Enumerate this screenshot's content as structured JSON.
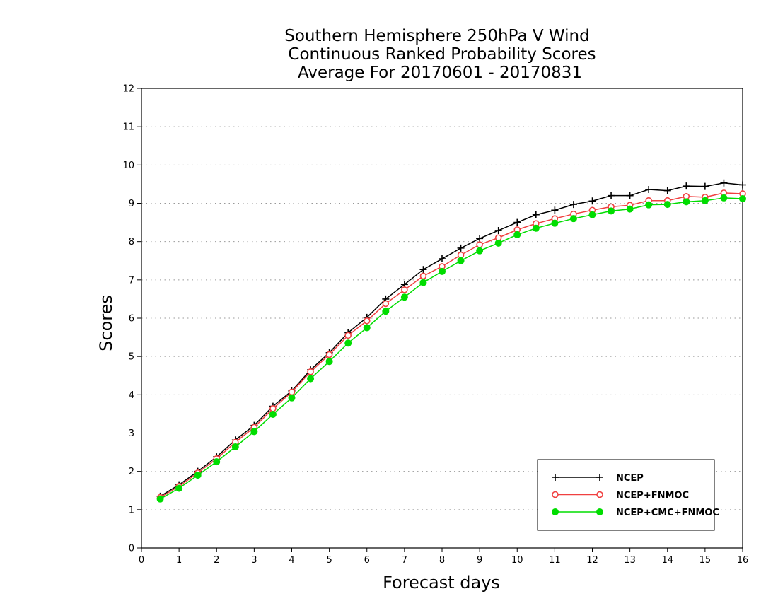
{
  "chart_data": {
    "type": "line",
    "title_lines": [
      "Southern Hemisphere 250hPa V Wind",
      "Continuous Ranked Probability Scores",
      "Average For 20170601 - 20170831"
    ],
    "xlabel": "Forecast days",
    "ylabel": "Scores",
    "xlim": [
      0,
      16
    ],
    "ylim": [
      0,
      12
    ],
    "xticks": [
      0,
      1,
      2,
      3,
      4,
      5,
      6,
      7,
      8,
      9,
      10,
      11,
      12,
      13,
      14,
      15,
      16
    ],
    "yticks": [
      0,
      1,
      2,
      3,
      4,
      5,
      6,
      7,
      8,
      9,
      10,
      11,
      12
    ],
    "grid": "horizontal dotted",
    "legend_position": "bottom-right",
    "x": [
      0.5,
      1,
      1.5,
      2,
      2.5,
      3,
      3.5,
      4,
      4.5,
      5,
      5.5,
      6,
      6.5,
      7,
      7.5,
      8,
      8.5,
      9,
      9.5,
      10,
      10.5,
      11,
      11.5,
      12,
      12.5,
      13,
      13.5,
      14,
      14.5,
      15,
      15.5,
      16
    ],
    "series": [
      {
        "name": "NCEP",
        "color": "#000000",
        "marker": "plus",
        "values": [
          1.35,
          1.65,
          2.0,
          2.38,
          2.82,
          3.2,
          3.7,
          4.1,
          4.65,
          5.1,
          5.62,
          6.02,
          6.5,
          6.88,
          7.27,
          7.55,
          7.83,
          8.08,
          8.29,
          8.5,
          8.7,
          8.82,
          8.97,
          9.06,
          9.2,
          9.2,
          9.36,
          9.33,
          9.45,
          9.44,
          9.53,
          9.48
        ]
      },
      {
        "name": "NCEP+FNMOC",
        "color": "#f04040",
        "marker": "open-circle",
        "values": [
          1.32,
          1.61,
          1.96,
          2.33,
          2.76,
          3.15,
          3.64,
          4.07,
          4.6,
          5.05,
          5.55,
          5.93,
          6.38,
          6.74,
          7.1,
          7.35,
          7.65,
          7.92,
          8.1,
          8.31,
          8.47,
          8.6,
          8.72,
          8.82,
          8.91,
          8.95,
          9.07,
          9.07,
          9.18,
          9.16,
          9.27,
          9.25
        ]
      },
      {
        "name": "NCEP+CMC+FNMOC",
        "color": "#00dd00",
        "marker": "filled-circle",
        "values": [
          1.28,
          1.56,
          1.9,
          2.25,
          2.64,
          3.04,
          3.49,
          3.92,
          4.42,
          4.87,
          5.35,
          5.75,
          6.18,
          6.55,
          6.93,
          7.22,
          7.5,
          7.76,
          7.96,
          8.18,
          8.35,
          8.48,
          8.6,
          8.7,
          8.8,
          8.85,
          8.96,
          8.97,
          9.04,
          9.07,
          9.14,
          9.12
        ]
      }
    ]
  }
}
